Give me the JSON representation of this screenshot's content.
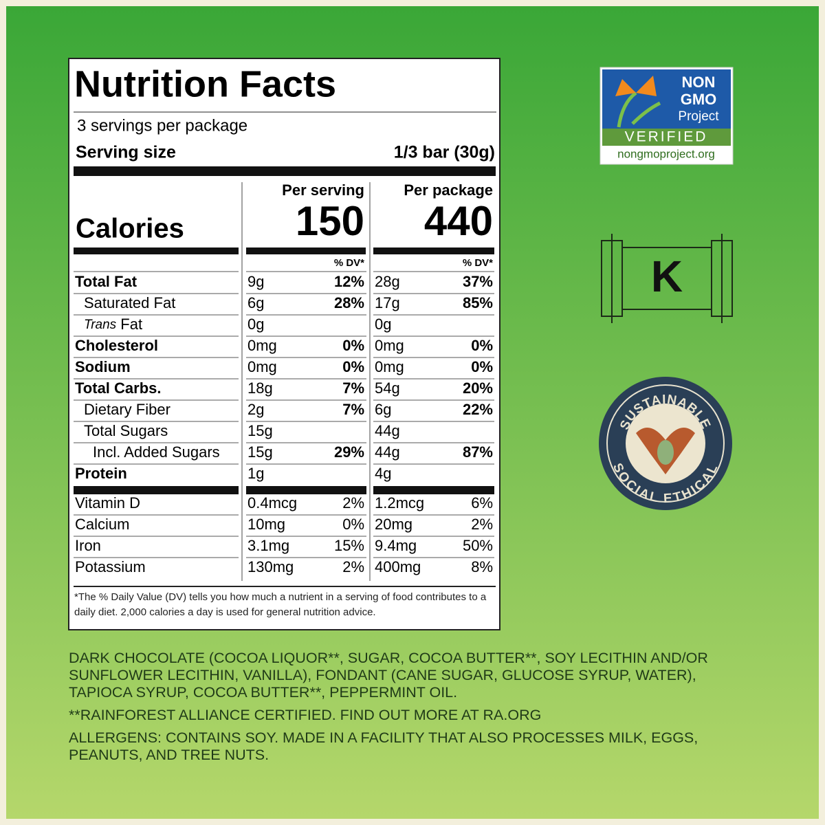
{
  "label": {
    "title": "Nutrition Facts",
    "servings": "3 servings per package",
    "serving_size_label": "Serving size",
    "serving_size": "1/3 bar (30g)",
    "calories_label": "Calories",
    "columns": [
      {
        "header": "Per serving",
        "calories": "150"
      },
      {
        "header": "Per package",
        "calories": "440"
      }
    ],
    "dv_header": "% DV*",
    "nutrients": [
      {
        "name": "Total Fat",
        "bold": true,
        "indent": 0,
        "cells": [
          "9g",
          "12%",
          "28g",
          "37%"
        ]
      },
      {
        "name": "Saturated Fat",
        "bold": false,
        "indent": 1,
        "cells": [
          "6g",
          "28%",
          "17g",
          "85%"
        ]
      },
      {
        "name_italic": "Trans",
        "name": "Fat",
        "bold": false,
        "indent": 1,
        "cells": [
          "0g",
          null,
          "0g",
          null
        ]
      },
      {
        "name": "Cholesterol",
        "bold": true,
        "indent": 0,
        "cells": [
          "0mg",
          "0%",
          "0mg",
          "0%"
        ]
      },
      {
        "name": "Sodium",
        "bold": true,
        "indent": 0,
        "cells": [
          "0mg",
          "0%",
          "0mg",
          "0%"
        ]
      },
      {
        "name": "Total Carbs.",
        "bold": true,
        "indent": 0,
        "cells": [
          "18g",
          "7%",
          "54g",
          "20%"
        ]
      },
      {
        "name": "Dietary Fiber",
        "bold": false,
        "indent": 1,
        "cells": [
          "2g",
          "7%",
          "6g",
          "22%"
        ]
      },
      {
        "name": "Total Sugars",
        "bold": false,
        "indent": 1,
        "cells": [
          "15g",
          null,
          "44g",
          null
        ]
      },
      {
        "name": "Incl. Added Sugars",
        "bold": false,
        "indent": 2,
        "cells": [
          "15g",
          "29%",
          "44g",
          "87%"
        ]
      },
      {
        "name": "Protein",
        "bold": true,
        "indent": 0,
        "cells": [
          "1g",
          null,
          "4g",
          null
        ]
      }
    ],
    "vitamins": [
      {
        "name": "Vitamin D",
        "cells": [
          "0.4mcg",
          "2%",
          "1.2mcg",
          "6%"
        ]
      },
      {
        "name": "Calcium",
        "cells": [
          "10mg",
          "0%",
          "20mg",
          "2%"
        ]
      },
      {
        "name": "Iron",
        "cells": [
          "3.1mg",
          "15%",
          "9.4mg",
          "50%"
        ]
      },
      {
        "name": "Potassium",
        "cells": [
          "130mg",
          "2%",
          "400mg",
          "8%"
        ]
      }
    ],
    "footnote": "*The % Daily Value (DV) tells you how much a nutrient in a serving of food contributes to a daily diet. 2,000 calories a day is used for general nutrition advice."
  },
  "ingredients": [
    "DARK CHOCOLATE (COCOA LIQUOR**, SUGAR, COCOA BUTTER**, SOY LECITHIN AND/OR SUNFLOWER LECITHIN, VANILLA), FONDANT (CANE SUGAR, GLUCOSE SYRUP, WATER), TAPIOCA SYRUP, COCOA BUTTER**, PEPPERMINT OIL.",
    "**RAINFOREST ALLIANCE CERTIFIED. FIND OUT MORE AT RA.ORG",
    "ALLERGENS: CONTAINS SOY. MADE IN A FACILITY THAT ALSO PROCESSES MILK, EGGS, PEANUTS, AND TREE NUTS."
  ],
  "badges": {
    "non_gmo": {
      "line1": "NON",
      "line2": "GMO",
      "line3": "Project",
      "verified": "VERIFIED",
      "url": "nongmoproject.org"
    },
    "kosher": "K",
    "sustainable": {
      "top": "SUSTAINABLE",
      "bottom": "SOCIAL ETHICAL"
    }
  }
}
